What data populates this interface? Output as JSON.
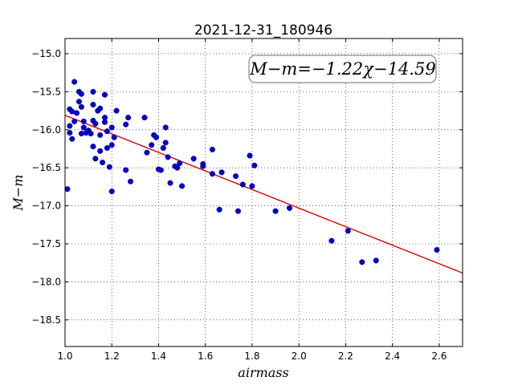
{
  "chart_data": {
    "type": "scatter",
    "title": "2021-12-31_180946",
    "xlabel": "airmass",
    "ylabel": "M−m",
    "annotation": "M−m=−1.22χ−14.59",
    "xlim": [
      1.0,
      2.7
    ],
    "ylim": [
      -18.85,
      -14.8
    ],
    "y_inverted": true,
    "grid": true,
    "xticks": [
      1.0,
      1.2,
      1.4,
      1.6,
      1.8,
      2.0,
      2.2,
      2.4,
      2.6
    ],
    "xtick_labels": [
      "1.0",
      "1.2",
      "1.4",
      "1.6",
      "1.8",
      "2.0",
      "2.2",
      "2.4",
      "2.6"
    ],
    "yticks": [
      -15.0,
      -15.5,
      -16.0,
      -16.5,
      -17.0,
      -17.5,
      -18.0,
      -18.5
    ],
    "ytick_labels": [
      "−15.0",
      "−15.5",
      "−16.0",
      "−16.5",
      "−17.0",
      "−17.5",
      "−18.0",
      "−18.5"
    ],
    "marker_color": "#0000cc",
    "fit_color": "#dd0000",
    "fit": {
      "slope": -1.22,
      "intercept": -14.59,
      "x_range": [
        1.0,
        2.7
      ]
    },
    "points": [
      {
        "x": 1.01,
        "y": -16.78
      },
      {
        "x": 1.02,
        "y": -15.95
      },
      {
        "x": 1.02,
        "y": -16.04
      },
      {
        "x": 1.02,
        "y": -15.73
      },
      {
        "x": 1.03,
        "y": -16.12
      },
      {
        "x": 1.03,
        "y": -15.76
      },
      {
        "x": 1.04,
        "y": -15.37
      },
      {
        "x": 1.04,
        "y": -15.89
      },
      {
        "x": 1.05,
        "y": -15.78
      },
      {
        "x": 1.06,
        "y": -15.5
      },
      {
        "x": 1.06,
        "y": -15.63
      },
      {
        "x": 1.07,
        "y": -15.53
      },
      {
        "x": 1.07,
        "y": -15.7
      },
      {
        "x": 1.07,
        "y": -16.05
      },
      {
        "x": 1.08,
        "y": -15.89
      },
      {
        "x": 1.08,
        "y": -15.97
      },
      {
        "x": 1.09,
        "y": -16.04
      },
      {
        "x": 1.1,
        "y": -16.01
      },
      {
        "x": 1.11,
        "y": -16.05
      },
      {
        "x": 1.12,
        "y": -15.5
      },
      {
        "x": 1.12,
        "y": -15.67
      },
      {
        "x": 1.12,
        "y": -15.88
      },
      {
        "x": 1.12,
        "y": -16.22
      },
      {
        "x": 1.13,
        "y": -16.38
      },
      {
        "x": 1.13,
        "y": -15.92
      },
      {
        "x": 1.14,
        "y": -15.75
      },
      {
        "x": 1.15,
        "y": -15.72
      },
      {
        "x": 1.15,
        "y": -16.07
      },
      {
        "x": 1.15,
        "y": -16.28
      },
      {
        "x": 1.16,
        "y": -16.43
      },
      {
        "x": 1.17,
        "y": -15.84
      },
      {
        "x": 1.17,
        "y": -15.9
      },
      {
        "x": 1.17,
        "y": -15.54
      },
      {
        "x": 1.18,
        "y": -16.02
      },
      {
        "x": 1.18,
        "y": -16.24
      },
      {
        "x": 1.19,
        "y": -16.49
      },
      {
        "x": 1.2,
        "y": -16.81
      },
      {
        "x": 1.2,
        "y": -16.2
      },
      {
        "x": 1.2,
        "y": -15.97
      },
      {
        "x": 1.21,
        "y": -16.1
      },
      {
        "x": 1.22,
        "y": -15.75
      },
      {
        "x": 1.26,
        "y": -16.53
      },
      {
        "x": 1.26,
        "y": -15.93
      },
      {
        "x": 1.27,
        "y": -15.84
      },
      {
        "x": 1.28,
        "y": -16.68
      },
      {
        "x": 1.34,
        "y": -15.84
      },
      {
        "x": 1.35,
        "y": -16.3
      },
      {
        "x": 1.37,
        "y": -16.2
      },
      {
        "x": 1.38,
        "y": -16.07
      },
      {
        "x": 1.39,
        "y": -16.1
      },
      {
        "x": 1.4,
        "y": -16.52
      },
      {
        "x": 1.41,
        "y": -16.53
      },
      {
        "x": 1.42,
        "y": -16.24
      },
      {
        "x": 1.43,
        "y": -15.97
      },
      {
        "x": 1.43,
        "y": -16.17
      },
      {
        "x": 1.44,
        "y": -16.36
      },
      {
        "x": 1.45,
        "y": -16.7
      },
      {
        "x": 1.47,
        "y": -16.48
      },
      {
        "x": 1.48,
        "y": -16.5
      },
      {
        "x": 1.49,
        "y": -16.44
      },
      {
        "x": 1.5,
        "y": -16.74
      },
      {
        "x": 1.55,
        "y": -16.38
      },
      {
        "x": 1.59,
        "y": -16.45
      },
      {
        "x": 1.59,
        "y": -16.48
      },
      {
        "x": 1.63,
        "y": -16.58
      },
      {
        "x": 1.63,
        "y": -16.26
      },
      {
        "x": 1.66,
        "y": -17.05
      },
      {
        "x": 1.67,
        "y": -16.56
      },
      {
        "x": 1.73,
        "y": -16.61
      },
      {
        "x": 1.74,
        "y": -17.07
      },
      {
        "x": 1.76,
        "y": -16.72
      },
      {
        "x": 1.79,
        "y": -16.34
      },
      {
        "x": 1.8,
        "y": -16.74
      },
      {
        "x": 1.81,
        "y": -16.47
      },
      {
        "x": 1.9,
        "y": -17.07
      },
      {
        "x": 1.96,
        "y": -17.03
      },
      {
        "x": 2.14,
        "y": -17.46
      },
      {
        "x": 2.21,
        "y": -17.33
      },
      {
        "x": 2.27,
        "y": -17.74
      },
      {
        "x": 2.33,
        "y": -17.72
      },
      {
        "x": 2.59,
        "y": -17.58
      }
    ]
  }
}
